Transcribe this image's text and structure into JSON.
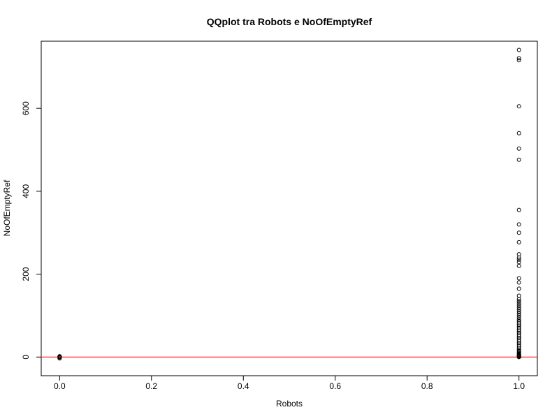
{
  "chart_data": {
    "type": "scatter",
    "title": "QQplot tra Robots e NoOfEmptyRef",
    "xlabel": "Robots",
    "ylabel": "NoOfEmptyRef",
    "xlim": [
      -0.04,
      1.04
    ],
    "ylim": [
      -45,
      762
    ],
    "x_ticks": [
      0.0,
      0.2,
      0.4,
      0.6,
      0.8,
      1.0
    ],
    "x_tick_labels": [
      "0.0",
      "0.2",
      "0.4",
      "0.6",
      "0.8",
      "1.0"
    ],
    "y_ticks": [
      0,
      200,
      400,
      600
    ],
    "y_tick_labels": [
      "0",
      "200",
      "400",
      "600"
    ],
    "grid": false,
    "reference_line": {
      "y": 0,
      "color": "#ff0000"
    },
    "point_color": "#000000",
    "series": [
      {
        "x": [
          0,
          0,
          0,
          0,
          0,
          1,
          1,
          1,
          1,
          1,
          1,
          1,
          1,
          1,
          1,
          1,
          1,
          1,
          1,
          1,
          1,
          1,
          1,
          1,
          1,
          1,
          1,
          1,
          1,
          1,
          1,
          1,
          1,
          1,
          1,
          1,
          1,
          1,
          1,
          1,
          1,
          1,
          1,
          1,
          1,
          1,
          1,
          1,
          1,
          1,
          1,
          1,
          1,
          1,
          1,
          1,
          1,
          1,
          1,
          1,
          1,
          1,
          1,
          1,
          1,
          1,
          1
        ],
        "y": [
          -3,
          -1,
          0,
          1,
          2,
          741,
          721,
          716,
          605,
          540,
          503,
          476,
          355,
          320,
          300,
          277,
          248,
          240,
          235,
          229,
          220,
          190,
          180,
          165,
          148,
          140,
          135,
          130,
          125,
          120,
          115,
          110,
          105,
          100,
          95,
          90,
          86,
          82,
          78,
          74,
          70,
          66,
          62,
          58,
          54,
          50,
          46,
          42,
          38,
          34,
          30,
          26,
          22,
          18,
          15,
          12,
          10,
          8,
          6,
          5,
          4,
          3,
          2,
          1,
          1,
          0,
          0
        ]
      }
    ]
  }
}
